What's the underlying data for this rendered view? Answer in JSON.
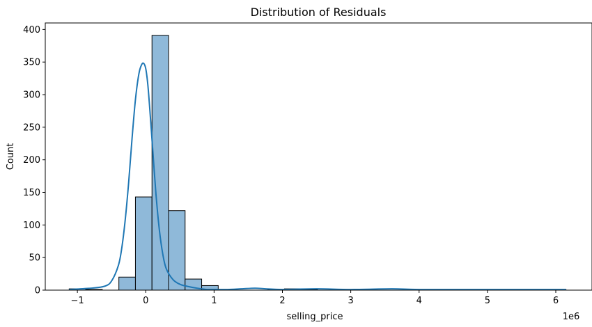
{
  "chart_data": {
    "type": "bar",
    "title": "Distribution of Residuals",
    "xlabel": "selling_price",
    "ylabel": "Count",
    "x_offset_label": "1e6",
    "xlim": [
      -1.47,
      6.53
    ],
    "ylim": [
      0,
      410
    ],
    "x_ticks": [
      -1,
      0,
      1,
      2,
      3,
      4,
      5,
      6
    ],
    "x_tick_labels": [
      "−1",
      "0",
      "1",
      "2",
      "3",
      "4",
      "5",
      "6"
    ],
    "y_ticks": [
      0,
      50,
      100,
      150,
      200,
      250,
      300,
      350,
      400
    ],
    "y_tick_labels": [
      "0",
      "50",
      "100",
      "150",
      "200",
      "250",
      "300",
      "350",
      "400"
    ],
    "grid": false,
    "bins": {
      "start": -1.12,
      "width": 0.2423,
      "counts": [
        2,
        1,
        0,
        20,
        143,
        391,
        122,
        17,
        7,
        0,
        0,
        0,
        1,
        2,
        1,
        0,
        0,
        0,
        0,
        0,
        0,
        0,
        0,
        0,
        0,
        0,
        0,
        0,
        0,
        1
      ]
    },
    "kde": {
      "x": [
        -1.12,
        -0.8,
        -0.6,
        -0.5,
        -0.4,
        -0.35,
        -0.3,
        -0.25,
        -0.2,
        -0.15,
        -0.1,
        -0.06,
        -0.03,
        0.0,
        0.03,
        0.06,
        0.1,
        0.15,
        0.2,
        0.25,
        0.3,
        0.4,
        0.5,
        0.6,
        0.75,
        0.9,
        1.0,
        1.2,
        1.4,
        1.6,
        1.75,
        2.0,
        2.5,
        3.0,
        3.6,
        4.0,
        5.0,
        6.0,
        6.15
      ],
      "y": [
        1,
        3,
        6,
        14,
        38,
        65,
        108,
        165,
        233,
        293,
        332,
        346,
        348,
        340,
        316,
        277,
        219,
        147,
        92,
        55,
        33,
        16,
        9,
        6,
        3,
        1,
        1,
        1,
        2,
        3,
        2,
        1,
        2,
        1,
        2,
        1,
        1,
        1,
        1
      ],
      "color": "#1f77b4"
    },
    "bar_fill": "#8fb9d9",
    "bar_edge": "#000000"
  }
}
